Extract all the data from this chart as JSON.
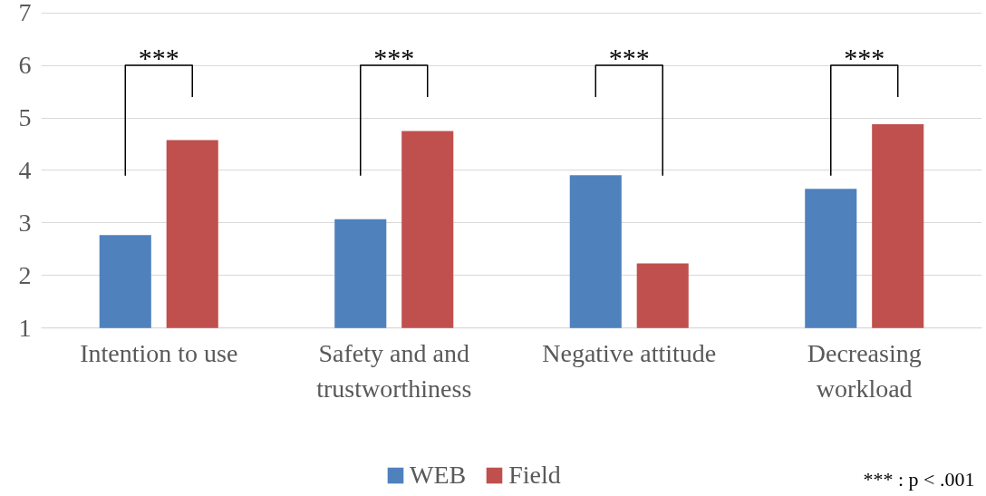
{
  "chart_data": {
    "type": "bar",
    "categories": [
      "Intention to use",
      "Safety and and\ntrustworthiness",
      "Negative attitude",
      "Decreasing\nworkload"
    ],
    "series": [
      {
        "name": "WEB",
        "color": "#4f81bd",
        "values": [
          2.77,
          3.07,
          3.91,
          3.65
        ]
      },
      {
        "name": "Field",
        "color": "#c0504d",
        "values": [
          4.58,
          4.75,
          2.23,
          4.88
        ]
      }
    ],
    "ylim": [
      1,
      7
    ],
    "yticks": [
      1,
      2,
      3,
      4,
      5,
      6,
      7
    ],
    "grid": "y",
    "legend": "bottom",
    "annotations": [
      "***",
      "***",
      "***",
      "***",
      "*** : p < .001"
    ]
  }
}
